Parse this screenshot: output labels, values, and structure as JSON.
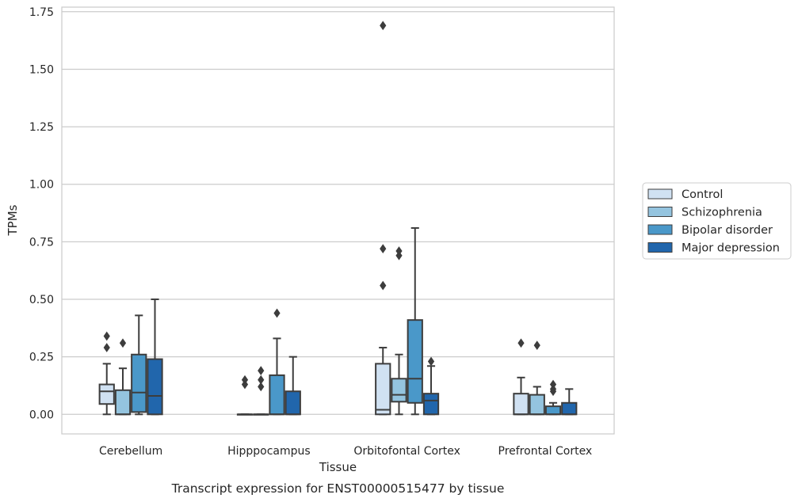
{
  "chart_data": {
    "type": "box",
    "caption": "Transcript expression for ENST00000515477 by tissue",
    "xlabel": "Tissue",
    "ylabel": "TPMs",
    "ylim": [
      -0.085,
      1.77
    ],
    "yticks": [
      "0.00",
      "0.25",
      "0.50",
      "0.75",
      "1.00",
      "1.25",
      "1.50",
      "1.75"
    ],
    "grid": "horizontal",
    "legend_position": "right",
    "categories": [
      "Cerebellum",
      "Hipppocampus",
      "Orbitofontal Cortex",
      "Prefrontal Cortex"
    ],
    "series": [
      {
        "name": "Control",
        "color": "#d0e1f2",
        "boxes": [
          {
            "whisker_low": 0.0,
            "q1": 0.045,
            "median": 0.1,
            "q3": 0.13,
            "whisker_high": 0.22,
            "outliers": [
              0.29,
              0.34
            ]
          },
          {
            "whisker_low": 0.0,
            "q1": 0.0,
            "median": 0.0,
            "q3": 0.0,
            "whisker_high": 0.0,
            "outliers": [
              0.13,
              0.15
            ]
          },
          {
            "whisker_low": 0.0,
            "q1": 0.0,
            "median": 0.02,
            "q3": 0.22,
            "whisker_high": 0.29,
            "outliers": [
              0.56,
              0.72,
              1.69
            ]
          },
          {
            "whisker_low": 0.0,
            "q1": 0.0,
            "median": 0.0,
            "q3": 0.09,
            "whisker_high": 0.16,
            "outliers": [
              0.31
            ]
          }
        ]
      },
      {
        "name": "Schizophrenia",
        "color": "#94c4df",
        "boxes": [
          {
            "whisker_low": 0.0,
            "q1": 0.0,
            "median": 0.0,
            "q3": 0.105,
            "whisker_high": 0.2,
            "outliers": [
              0.31
            ]
          },
          {
            "whisker_low": 0.0,
            "q1": 0.0,
            "median": 0.0,
            "q3": 0.0,
            "whisker_high": 0.0,
            "outliers": [
              0.12,
              0.15,
              0.19
            ]
          },
          {
            "whisker_low": 0.0,
            "q1": 0.055,
            "median": 0.085,
            "q3": 0.155,
            "whisker_high": 0.26,
            "outliers": [
              0.69,
              0.71
            ]
          },
          {
            "whisker_low": 0.0,
            "q1": 0.0,
            "median": 0.0,
            "q3": 0.085,
            "whisker_high": 0.12,
            "outliers": [
              0.3
            ]
          }
        ]
      },
      {
        "name": "Bipolar disorder",
        "color": "#4a98c9",
        "boxes": [
          {
            "whisker_low": 0.0,
            "q1": 0.01,
            "median": 0.095,
            "q3": 0.26,
            "whisker_high": 0.43,
            "outliers": []
          },
          {
            "whisker_low": 0.0,
            "q1": 0.0,
            "median": 0.0,
            "q3": 0.17,
            "whisker_high": 0.33,
            "outliers": [
              0.44
            ]
          },
          {
            "whisker_low": 0.0,
            "q1": 0.05,
            "median": 0.155,
            "q3": 0.41,
            "whisker_high": 0.81,
            "outliers": []
          },
          {
            "whisker_low": 0.0,
            "q1": 0.0,
            "median": 0.0,
            "q3": 0.035,
            "whisker_high": 0.05,
            "outliers": [
              0.1,
              0.11,
              0.13
            ]
          }
        ]
      },
      {
        "name": "Major depression",
        "color": "#2166ac",
        "boxes": [
          {
            "whisker_low": 0.0,
            "q1": 0.0,
            "median": 0.08,
            "q3": 0.24,
            "whisker_high": 0.5,
            "outliers": []
          },
          {
            "whisker_low": 0.0,
            "q1": 0.0,
            "median": 0.0,
            "q3": 0.1,
            "whisker_high": 0.25,
            "outliers": []
          },
          {
            "whisker_low": 0.0,
            "q1": 0.0,
            "median": 0.06,
            "q3": 0.09,
            "whisker_high": 0.21,
            "outliers": [
              0.23
            ]
          },
          {
            "whisker_low": 0.0,
            "q1": 0.0,
            "median": 0.0,
            "q3": 0.05,
            "whisker_high": 0.11,
            "outliers": []
          }
        ]
      }
    ]
  }
}
